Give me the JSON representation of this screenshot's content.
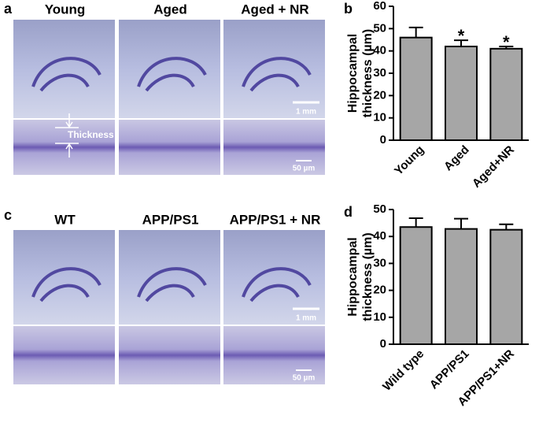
{
  "panels": [
    {
      "label": "a",
      "columns": [
        "Young",
        "Aged",
        "Aged + NR"
      ],
      "scale_top": "1 mm",
      "scale_bottom": "50 µm",
      "annotation": "Thickness"
    },
    {
      "label": "c",
      "columns": [
        "WT",
        "APP/PS1",
        "APP/PS1 + NR"
      ],
      "scale_top": "1 mm",
      "scale_bottom": "50 µm"
    }
  ],
  "chart_data": [
    {
      "type": "bar",
      "panel_label": "b",
      "ylabel": [
        "Hippocampal",
        "thickness (µm)"
      ],
      "categories": [
        "Young",
        "Aged",
        "Aged+NR"
      ],
      "values": [
        46,
        42,
        41
      ],
      "errors": [
        4.5,
        2.8,
        1.0
      ],
      "annotations": [
        {
          "index": 1,
          "text": "*"
        },
        {
          "index": 2,
          "text": "*"
        }
      ],
      "color": "#a6a6a6",
      "ylim": [
        0,
        60
      ],
      "yticks": [
        0,
        10,
        20,
        30,
        40,
        50,
        60
      ]
    },
    {
      "type": "bar",
      "panel_label": "d",
      "ylabel": [
        "Hippocampal",
        "thickness (µm)"
      ],
      "categories": [
        "Wild type",
        "APP/PS1",
        "APP/PS1+NR"
      ],
      "values": [
        43.5,
        42.8,
        42.5
      ],
      "errors": [
        3.3,
        3.8,
        2.0
      ],
      "color": "#a6a6a6",
      "ylim": [
        0,
        50
      ],
      "yticks": [
        0,
        10,
        20,
        30,
        40,
        50
      ]
    }
  ]
}
